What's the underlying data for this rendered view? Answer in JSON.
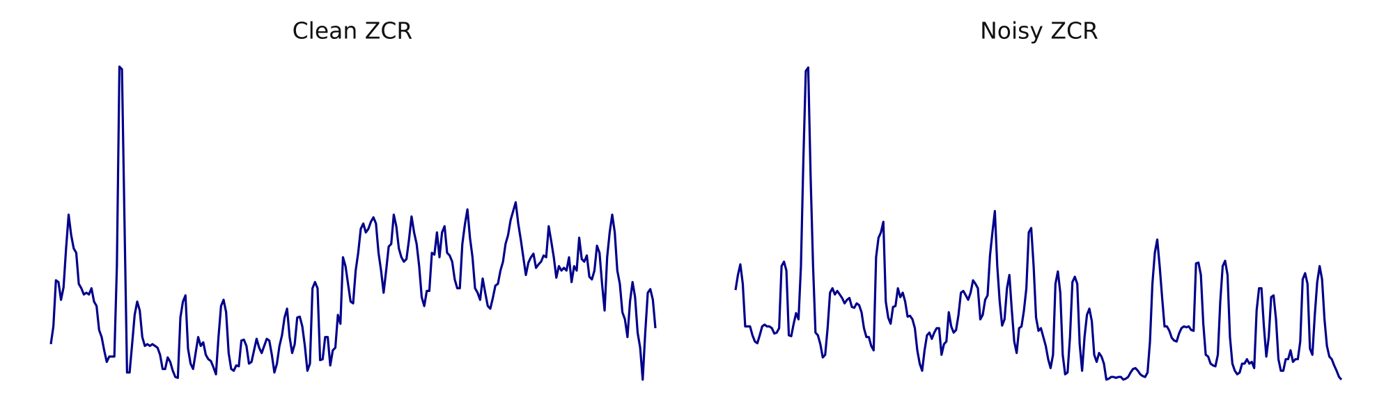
{
  "chart_data": [
    {
      "type": "line",
      "title": "Clean ZCR",
      "color": "#00008b",
      "ylim": [
        0,
        360
      ],
      "values": [
        44,
        64,
        116,
        114,
        94,
        108,
        152,
        190,
        167,
        152,
        147,
        112,
        107,
        100,
        102,
        100,
        107,
        92,
        87,
        60,
        52,
        37,
        24,
        30,
        30,
        30,
        132,
        357,
        354,
        182,
        12,
        12,
        44,
        77,
        92,
        82,
        52,
        42,
        44,
        42,
        44,
        42,
        40,
        32,
        16,
        16,
        29,
        24,
        14,
        7,
        6,
        74,
        92,
        99,
        39,
        22,
        16,
        34,
        52,
        42,
        46,
        32,
        27,
        25,
        18,
        10,
        52,
        87,
        94,
        80,
        34,
        16,
        14,
        20,
        19,
        48,
        49,
        42,
        22,
        24,
        37,
        50,
        40,
        34,
        42,
        50,
        48,
        32,
        12,
        22,
        42,
        54,
        74,
        84,
        52,
        34,
        44,
        74,
        75,
        64,
        42,
        14,
        22,
        107,
        114,
        107,
        26,
        27,
        52,
        52,
        20,
        37,
        40,
        77,
        67,
        142,
        132,
        112,
        92,
        90,
        127,
        147,
        174,
        180,
        170,
        174,
        182,
        187,
        180,
        147,
        127,
        102,
        127,
        154,
        157,
        190,
        177,
        152,
        142,
        137,
        140,
        162,
        188,
        170,
        157,
        132,
        97,
        87,
        104,
        104,
        147,
        145,
        170,
        142,
        170,
        177,
        147,
        144,
        137,
        117,
        107,
        107,
        157,
        179,
        196,
        164,
        142,
        107,
        102,
        94,
        118,
        102,
        87,
        84,
        96,
        110,
        112,
        127,
        137,
        157,
        167,
        184,
        194,
        204,
        180,
        162,
        142,
        122,
        136,
        142,
        146,
        130,
        134,
        137,
        144,
        142,
        177,
        160,
        142,
        119,
        132,
        127,
        130,
        127,
        142,
        114,
        132,
        127,
        164,
        140,
        137,
        144,
        120,
        117,
        127,
        155,
        147,
        112,
        82,
        142,
        170,
        190,
        170,
        127,
        112,
        80,
        72,
        52,
        92,
        114,
        97,
        57,
        40,
        4,
        57,
        102,
        106,
        94,
        62
      ]
    },
    {
      "type": "line",
      "title": "Noisy ZCR",
      "color": "#00008b",
      "ylim": [
        0,
        360
      ],
      "values": [
        105,
        122,
        134,
        112,
        64,
        64,
        64,
        54,
        47,
        45,
        54,
        64,
        66,
        64,
        64,
        62,
        56,
        57,
        62,
        132,
        137,
        127,
        54,
        53,
        67,
        79,
        72,
        132,
        252,
        352,
        356,
        232,
        132,
        57,
        54,
        44,
        29,
        32,
        62,
        102,
        107,
        100,
        104,
        100,
        96,
        90,
        94,
        96,
        86,
        85,
        90,
        88,
        80,
        62,
        52,
        52,
        42,
        37,
        142,
        164,
        170,
        182,
        92,
        74,
        67,
        86,
        87,
        107,
        97,
        102,
        92,
        75,
        76,
        72,
        62,
        37,
        22,
        14,
        37,
        54,
        57,
        50,
        57,
        62,
        62,
        32,
        44,
        47,
        80,
        64,
        57,
        60,
        77,
        102,
        104,
        99,
        94,
        102,
        116,
        112,
        107,
        72,
        77,
        94,
        99,
        144,
        170,
        194,
        132,
        92,
        65,
        72,
        107,
        122,
        82,
        47,
        34,
        62,
        64,
        82,
        107,
        170,
        175,
        132,
        74,
        59,
        62,
        52,
        42,
        27,
        17,
        32,
        112,
        126,
        102,
        32,
        10,
        12,
        52,
        114,
        120,
        112,
        44,
        14,
        52,
        77,
        84,
        70,
        32,
        24,
        34,
        30,
        22,
        4,
        5,
        7,
        7,
        6,
        7,
        7,
        4,
        5,
        7,
        12,
        16,
        17,
        14,
        10,
        8,
        7,
        12,
        47,
        112,
        147,
        162,
        132,
        97,
        64,
        64,
        59,
        51,
        48,
        47,
        56,
        62,
        64,
        63,
        64,
        60,
        59,
        135,
        136,
        122,
        67,
        32,
        30,
        22,
        20,
        19,
        32,
        92,
        132,
        138,
        122,
        52,
        22,
        14,
        10,
        12,
        22,
        22,
        27,
        22,
        24,
        17,
        82,
        107,
        107,
        64,
        30,
        52,
        97,
        99,
        72,
        27,
        14,
        14,
        27,
        27,
        37,
        24,
        27,
        27,
        47,
        117,
        124,
        112,
        39,
        32,
        77,
        114,
        132,
        117,
        72,
        42,
        30,
        27,
        20,
        14,
        7,
        4
      ]
    }
  ]
}
